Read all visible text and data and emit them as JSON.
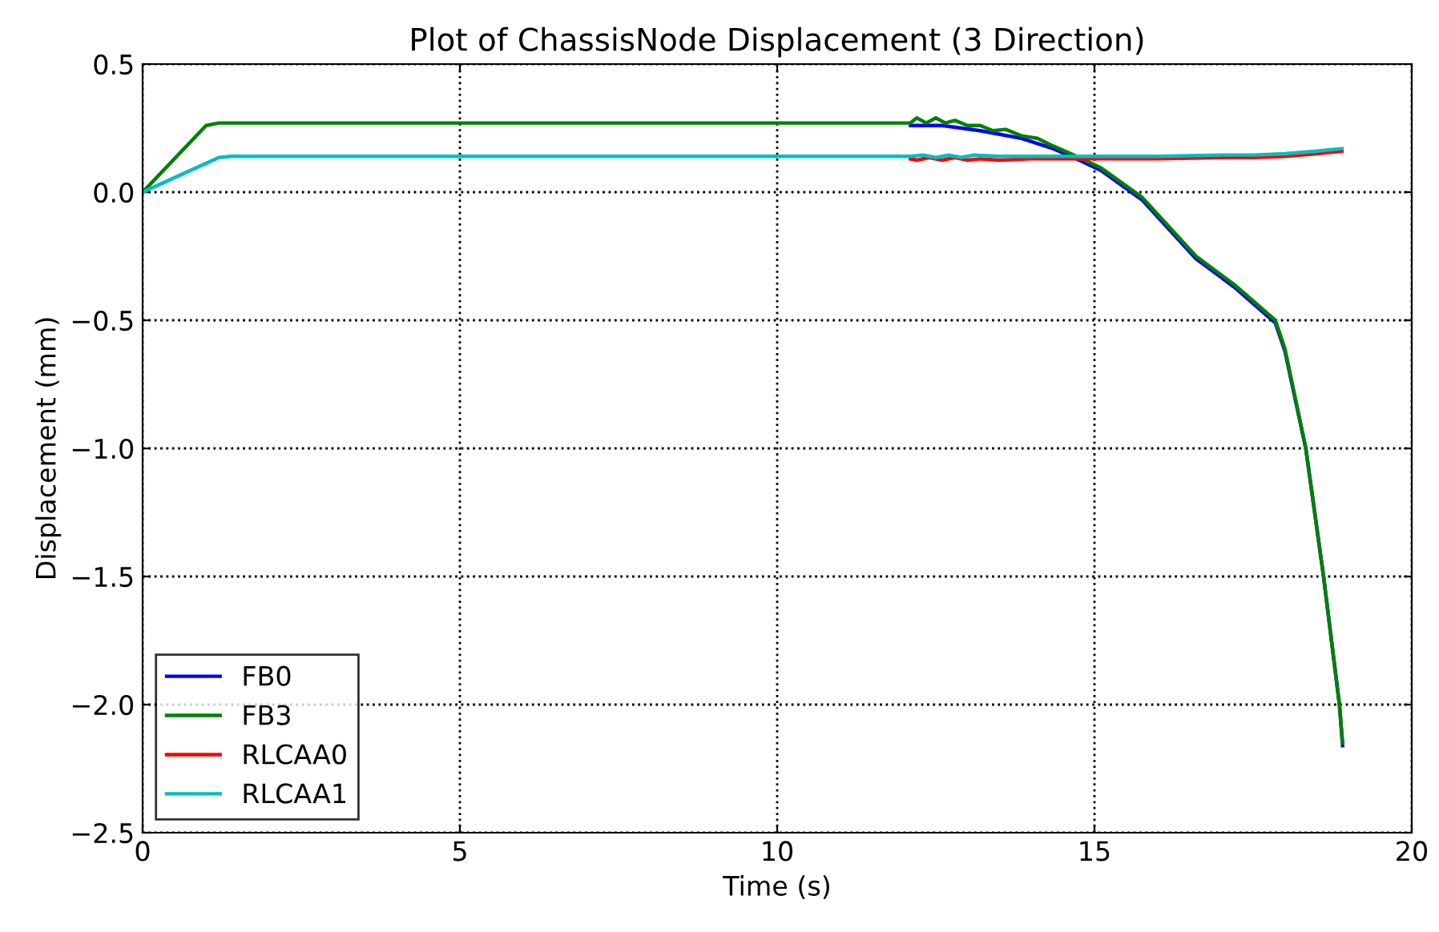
{
  "chart_data": {
    "type": "line",
    "title": "Plot of ChassisNode Displacement (3 Direction)",
    "xlabel": "Time (s)",
    "ylabel": "Displacement (mm)",
    "xlim": [
      0,
      20
    ],
    "xticks": [
      0,
      5,
      10,
      15,
      20
    ],
    "ylim": [
      -2.5,
      0.5
    ],
    "yticks": [
      {
        "value": -2.5,
        "label": "−2.5"
      },
      {
        "value": -2.0,
        "label": "−2.0"
      },
      {
        "value": -1.5,
        "label": "−1.5"
      },
      {
        "value": -1.0,
        "label": "−1.0"
      },
      {
        "value": -0.5,
        "label": "−0.5"
      },
      {
        "value": 0.0,
        "label": "0.0"
      },
      {
        "value": 0.5,
        "label": "0.5"
      }
    ],
    "grid": true,
    "legend": "bottom left",
    "line_style": "solid",
    "series": [
      {
        "name": "FB0",
        "color": "#0000ff",
        "x": [
          12.1,
          12.3,
          12.6,
          13.2,
          13.85,
          14.35,
          14.67,
          15.1,
          15.75,
          16.6,
          17.2,
          17.85,
          18.0,
          18.33,
          18.61,
          18.86,
          18.91
        ],
        "values": [
          0.26,
          0.26,
          0.26,
          0.24,
          0.21,
          0.17,
          0.135,
          0.085,
          -0.03,
          -0.26,
          -0.37,
          -0.51,
          -0.62,
          -1.0,
          -1.5,
          -2.0,
          -2.16
        ]
      },
      {
        "name": "FB3",
        "color": "#008000",
        "x": [
          0,
          1.0,
          1.2,
          12.1,
          12.2,
          12.35,
          12.5,
          12.65,
          12.8,
          13.0,
          13.2,
          13.4,
          13.6,
          13.85,
          14.1,
          14.35,
          14.67,
          15.1,
          15.75,
          16.6,
          17.2,
          17.85,
          18.0,
          18.33,
          18.61,
          18.86,
          18.91
        ],
        "values": [
          0,
          0.26,
          0.27,
          0.27,
          0.29,
          0.27,
          0.29,
          0.27,
          0.28,
          0.26,
          0.26,
          0.24,
          0.245,
          0.22,
          0.21,
          0.18,
          0.145,
          0.095,
          -0.02,
          -0.25,
          -0.36,
          -0.5,
          -0.61,
          -1.0,
          -1.5,
          -2.0,
          -2.15
        ]
      },
      {
        "name": "RLCAA0",
        "color": "#ff0000",
        "x": [
          12.1,
          12.2,
          12.4,
          12.6,
          12.8,
          13.0,
          13.2,
          13.5,
          14.0,
          15.0,
          16.0,
          17.0,
          17.5,
          18.0,
          18.5,
          18.9
        ],
        "values": [
          0.13,
          0.125,
          0.135,
          0.125,
          0.135,
          0.125,
          0.13,
          0.125,
          0.13,
          0.13,
          0.13,
          0.135,
          0.135,
          0.14,
          0.15,
          0.16
        ]
      },
      {
        "name": "RLCAA1",
        "color": "#00bfbf",
        "x": [
          0,
          1.2,
          1.4,
          12.1,
          12.3,
          12.5,
          12.7,
          12.9,
          13.1,
          13.5,
          14.0,
          15.0,
          16.0,
          17.0,
          17.5,
          18.0,
          18.5,
          18.9
        ],
        "values": [
          0,
          0.135,
          0.14,
          0.14,
          0.145,
          0.135,
          0.145,
          0.135,
          0.145,
          0.14,
          0.14,
          0.14,
          0.14,
          0.145,
          0.145,
          0.15,
          0.16,
          0.17
        ]
      }
    ]
  }
}
